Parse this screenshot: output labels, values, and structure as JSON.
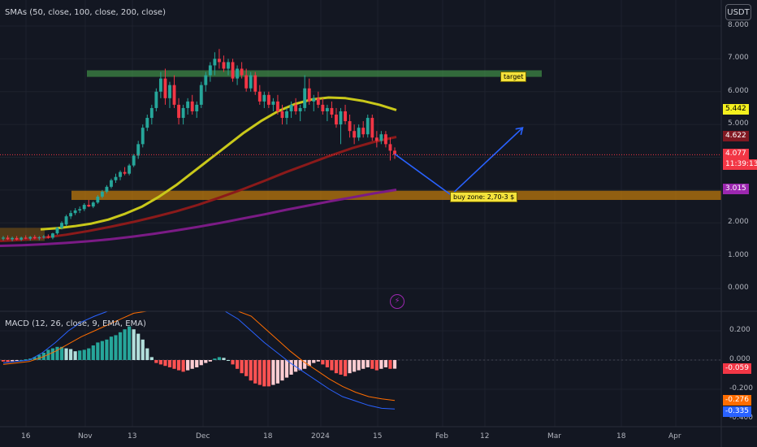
{
  "indicators": {
    "sma": "SMAs (50, close, 100, close, 200, close)",
    "macd": "MACD (12, 26, close, 9, EMA, EMA)"
  },
  "currency_button": "USDT",
  "icons": {
    "alert": "lightning-icon"
  },
  "price_axis": {
    "ticks": [
      "8.000",
      "7.000",
      "6.000",
      "5.000",
      "2.000",
      "1.000",
      "0.000"
    ],
    "range": [
      0.0,
      8.0
    ]
  },
  "macd_axis": {
    "ticks": [
      "0.200",
      "0.000",
      "-0.200",
      "-0.400"
    ],
    "range": [
      -0.4,
      0.25
    ]
  },
  "time_axis": [
    "16",
    "Nov",
    "13",
    "Dec",
    "18",
    "2024",
    "15",
    "Feb",
    "12",
    "Mar",
    "18",
    "Apr"
  ],
  "price_tags": [
    {
      "label": "5.442",
      "value": 5.442,
      "bg": "#f4f01e",
      "fg": "#000000"
    },
    {
      "label": "4.622",
      "value": 4.622,
      "bg": "#801922",
      "fg": "#ffffff"
    },
    {
      "label": "4.077",
      "value": 4.077,
      "bg": "#f23645",
      "fg": "#ffffff",
      "countdown": "11:39:13"
    },
    {
      "label": "3.015",
      "value": 3.015,
      "bg": "#9c27b0",
      "fg": "#ffffff"
    }
  ],
  "macd_tags": [
    {
      "label": "-0.059",
      "value": -0.059,
      "bg": "#f23645",
      "fg": "#ffffff"
    },
    {
      "label": "-0.276",
      "value": -0.276,
      "bg": "#ff6d00",
      "fg": "#ffffff"
    },
    {
      "label": "-0.335",
      "value": -0.335,
      "bg": "#2962ff",
      "fg": "#ffffff"
    }
  ],
  "annotations": {
    "target": {
      "text": "target",
      "zone": [
        6.45,
        6.65
      ]
    },
    "buy_zone": {
      "text": "buy zone: 2,70-3 $",
      "zone": [
        2.7,
        2.98
      ]
    }
  },
  "colors": {
    "up": "#26a69a",
    "down": "#f23645",
    "sma50": "#c9c81a",
    "sma100": "#8b1a1a",
    "sma200": "#7b1b86",
    "macd": "#2962ff",
    "signal": "#ff6d00",
    "hist_up_strong": "#26a69a",
    "hist_up_weak": "#b2dfdb",
    "hist_down_strong": "#ff5252",
    "hist_down_weak": "#ffcdd2",
    "projection": "#2962ff"
  },
  "chart_data": {
    "type": "candlestick",
    "candles": [
      [
        1.52,
        1.6,
        1.46,
        1.55
      ],
      [
        1.55,
        1.62,
        1.48,
        1.5
      ],
      [
        1.5,
        1.58,
        1.44,
        1.54
      ],
      [
        1.54,
        1.6,
        1.47,
        1.49
      ],
      [
        1.49,
        1.58,
        1.45,
        1.55
      ],
      [
        1.55,
        1.62,
        1.5,
        1.52
      ],
      [
        1.52,
        1.6,
        1.46,
        1.57
      ],
      [
        1.57,
        1.63,
        1.5,
        1.53
      ],
      [
        1.53,
        1.6,
        1.47,
        1.56
      ],
      [
        1.56,
        1.63,
        1.52,
        1.58
      ],
      [
        1.58,
        1.65,
        1.52,
        1.55
      ],
      [
        1.55,
        1.7,
        1.5,
        1.68
      ],
      [
        1.68,
        1.88,
        1.64,
        1.85
      ],
      [
        1.85,
        2.05,
        1.8,
        2.0
      ],
      [
        1.95,
        2.25,
        1.9,
        2.2
      ],
      [
        2.2,
        2.38,
        2.12,
        2.3
      ],
      [
        2.3,
        2.45,
        2.24,
        2.38
      ],
      [
        2.38,
        2.5,
        2.3,
        2.42
      ],
      [
        2.42,
        2.6,
        2.36,
        2.55
      ],
      [
        2.55,
        2.7,
        2.48,
        2.5
      ],
      [
        2.5,
        2.66,
        2.45,
        2.62
      ],
      [
        2.62,
        2.85,
        2.58,
        2.8
      ],
      [
        2.8,
        3.0,
        2.75,
        2.95
      ],
      [
        2.95,
        3.15,
        2.9,
        3.1
      ],
      [
        3.1,
        3.35,
        3.05,
        3.3
      ],
      [
        3.3,
        3.5,
        3.22,
        3.4
      ],
      [
        3.4,
        3.6,
        3.3,
        3.55
      ],
      [
        3.55,
        3.7,
        3.45,
        3.5
      ],
      [
        3.5,
        3.8,
        3.45,
        3.75
      ],
      [
        3.75,
        4.1,
        3.7,
        4.05
      ],
      [
        4.05,
        4.5,
        3.95,
        4.4
      ],
      [
        4.4,
        5.0,
        4.3,
        4.9
      ],
      [
        4.9,
        5.3,
        4.8,
        5.2
      ],
      [
        5.2,
        5.6,
        5.0,
        5.5
      ],
      [
        5.5,
        6.1,
        5.4,
        6.0
      ],
      [
        6.0,
        6.6,
        5.8,
        6.4
      ],
      [
        6.4,
        6.7,
        5.6,
        5.8
      ],
      [
        5.8,
        6.3,
        5.5,
        6.2
      ],
      [
        6.2,
        6.5,
        5.5,
        5.6
      ],
      [
        5.6,
        5.8,
        5.0,
        5.2
      ],
      [
        5.2,
        5.6,
        5.0,
        5.5
      ],
      [
        5.5,
        5.8,
        5.3,
        5.7
      ],
      [
        5.7,
        5.9,
        5.3,
        5.4
      ],
      [
        5.4,
        5.7,
        5.2,
        5.6
      ],
      [
        5.6,
        6.3,
        5.5,
        6.2
      ],
      [
        6.2,
        6.6,
        6.0,
        6.5
      ],
      [
        6.5,
        6.9,
        6.3,
        6.8
      ],
      [
        6.8,
        7.2,
        6.5,
        7.0
      ],
      [
        7.0,
        7.3,
        6.7,
        6.9
      ],
      [
        6.9,
        7.1,
        6.6,
        6.7
      ],
      [
        6.7,
        7.0,
        6.5,
        6.9
      ],
      [
        6.9,
        7.0,
        6.3,
        6.4
      ],
      [
        6.4,
        6.8,
        6.2,
        6.7
      ],
      [
        6.7,
        6.9,
        6.4,
        6.5
      ],
      [
        6.5,
        6.7,
        6.0,
        6.1
      ],
      [
        6.1,
        6.6,
        6.0,
        6.5
      ],
      [
        6.5,
        6.6,
        5.9,
        6.0
      ],
      [
        6.0,
        6.2,
        5.6,
        5.7
      ],
      [
        5.7,
        6.0,
        5.5,
        5.9
      ],
      [
        5.9,
        6.0,
        5.5,
        5.6
      ],
      [
        5.6,
        5.8,
        5.4,
        5.7
      ],
      [
        5.7,
        5.9,
        5.3,
        5.4
      ],
      [
        5.4,
        5.6,
        5.0,
        5.2
      ],
      [
        5.2,
        5.5,
        5.0,
        5.4
      ],
      [
        5.4,
        5.7,
        5.2,
        5.6
      ],
      [
        5.6,
        5.8,
        5.3,
        5.4
      ],
      [
        5.4,
        5.6,
        5.1,
        5.5
      ],
      [
        5.5,
        6.5,
        5.4,
        6.1
      ],
      [
        6.1,
        6.4,
        5.6,
        5.7
      ],
      [
        5.7,
        5.9,
        5.4,
        5.8
      ],
      [
        5.8,
        6.0,
        5.5,
        5.6
      ],
      [
        5.6,
        5.8,
        5.3,
        5.4
      ],
      [
        5.4,
        5.6,
        5.1,
        5.5
      ],
      [
        5.5,
        5.7,
        5.2,
        5.3
      ],
      [
        5.3,
        5.5,
        4.9,
        5.0
      ],
      [
        5.0,
        5.5,
        4.4,
        5.4
      ],
      [
        5.4,
        5.6,
        5.0,
        5.1
      ],
      [
        5.1,
        5.3,
        4.6,
        4.8
      ],
      [
        4.8,
        5.0,
        4.4,
        4.6
      ],
      [
        4.6,
        5.0,
        4.5,
        4.9
      ],
      [
        4.9,
        5.1,
        4.6,
        4.7
      ],
      [
        4.7,
        5.3,
        4.6,
        5.2
      ],
      [
        5.2,
        5.3,
        4.5,
        4.6
      ],
      [
        4.6,
        4.8,
        4.3,
        4.5
      ],
      [
        4.5,
        4.8,
        4.4,
        4.7
      ],
      [
        4.7,
        4.8,
        4.3,
        4.4
      ],
      [
        4.4,
        4.6,
        3.9,
        4.2
      ],
      [
        4.2,
        4.3,
        3.95,
        4.08
      ]
    ],
    "sma50_series": [
      1.8,
      1.84,
      1.9,
      1.98,
      2.1,
      2.28,
      2.5,
      2.8,
      3.15,
      3.55,
      3.95,
      4.35,
      4.75,
      5.1,
      5.4,
      5.62,
      5.76,
      5.82,
      5.8,
      5.72,
      5.6,
      5.44
    ],
    "sma100_series": [
      1.45,
      1.48,
      1.55,
      1.64,
      1.75,
      1.88,
      2.02,
      2.18,
      2.35,
      2.55,
      2.78,
      3.02,
      3.28,
      3.55,
      3.8,
      4.05,
      4.28,
      4.47,
      4.62
    ],
    "sma200_series": [
      1.3,
      1.32,
      1.35,
      1.39,
      1.44,
      1.5,
      1.58,
      1.67,
      1.77,
      1.88,
      2.0,
      2.13,
      2.26,
      2.4,
      2.53,
      2.66,
      2.78,
      2.9,
      3.01
    ],
    "projection": [
      [
        4.1,
        0
      ],
      [
        2.85,
        11
      ],
      [
        4.9,
        25
      ]
    ],
    "macd_histogram": [
      -0.01,
      -0.012,
      -0.008,
      -0.005,
      0.0,
      0.005,
      0.01,
      0.02,
      0.035,
      0.05,
      0.07,
      0.08,
      0.09,
      0.09,
      0.08,
      0.075,
      0.06,
      0.065,
      0.07,
      0.08,
      0.1,
      0.12,
      0.13,
      0.14,
      0.16,
      0.17,
      0.19,
      0.21,
      0.23,
      0.21,
      0.18,
      0.14,
      0.08,
      0.02,
      -0.02,
      -0.03,
      -0.04,
      -0.05,
      -0.06,
      -0.07,
      -0.08,
      -0.07,
      -0.06,
      -0.05,
      -0.035,
      -0.02,
      -0.01,
      0.01,
      0.02,
      0.015,
      0.0,
      -0.03,
      -0.06,
      -0.09,
      -0.11,
      -0.14,
      -0.16,
      -0.17,
      -0.18,
      -0.18,
      -0.17,
      -0.16,
      -0.14,
      -0.12,
      -0.1,
      -0.08,
      -0.07,
      -0.06,
      -0.04,
      -0.02,
      -0.01,
      -0.03,
      -0.05,
      -0.07,
      -0.09,
      -0.1,
      -0.11,
      -0.09,
      -0.08,
      -0.07,
      -0.06,
      -0.05,
      -0.06,
      -0.07,
      -0.06,
      -0.05,
      -0.06,
      -0.059
    ],
    "macd_line": [
      -0.02,
      -0.01,
      0.0,
      0.05,
      0.12,
      0.2,
      0.26,
      0.3,
      0.34,
      0.38,
      0.42,
      0.48,
      0.55,
      0.6,
      0.58,
      0.5,
      0.42,
      0.35,
      0.28,
      0.2,
      0.12,
      0.05,
      -0.02,
      -0.08,
      -0.14,
      -0.2,
      -0.25,
      -0.28,
      -0.31,
      -0.33,
      -0.335
    ],
    "signal_line": [
      -0.03,
      -0.02,
      -0.01,
      0.02,
      0.06,
      0.11,
      0.16,
      0.2,
      0.24,
      0.28,
      0.32,
      0.36,
      0.4,
      0.45,
      0.5,
      0.52,
      0.5,
      0.45,
      0.38,
      0.3,
      0.22,
      0.14,
      0.06,
      -0.01,
      -0.07,
      -0.13,
      -0.18,
      -0.22,
      -0.25,
      -0.265,
      -0.276
    ]
  }
}
